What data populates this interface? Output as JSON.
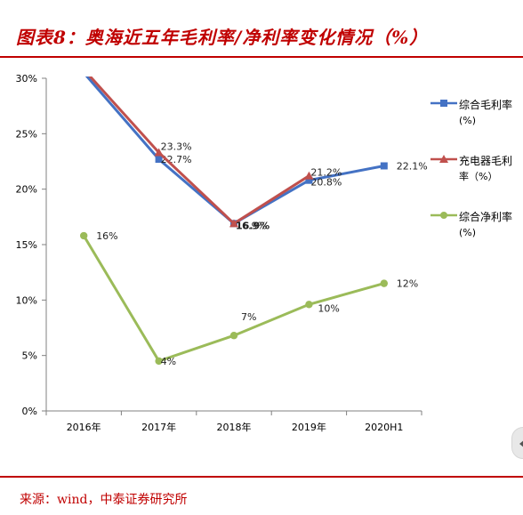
{
  "header": {
    "title": "图表8：奥海近五年毛利率/净利率变化情况（%）"
  },
  "footer": {
    "source": "来源：wind，中泰证券研究所"
  },
  "colors": {
    "accent": "#c00000",
    "series_gross": "#4472c4",
    "series_charger": "#c0504d",
    "series_net": "#9bbb59"
  },
  "chart_data": {
    "type": "line",
    "title": "",
    "xlabel": "",
    "ylabel": "",
    "categories": [
      "2016年",
      "2017年",
      "2018年",
      "2019年",
      "2020H1"
    ],
    "ylim": [
      0,
      30
    ],
    "yticks": [
      "0%",
      "5%",
      "10%",
      "15%",
      "20%",
      "25%",
      "30%"
    ],
    "grid": false,
    "legend_position": "right",
    "series": [
      {
        "name": "综合毛利率(%)",
        "legend_line1": "综合毛利率",
        "legend_line2": "(%)",
        "color": "#4472c4",
        "marker": "square",
        "values": [
          30.5,
          22.7,
          16.9,
          20.8,
          22.1
        ],
        "labels": [
          "",
          "22.7%",
          "16.9%",
          "20.8%",
          "22.1%"
        ]
      },
      {
        "name": "充电器毛利率（%）",
        "legend_line1": "充电器毛利",
        "legend_line2": "率（%）",
        "color": "#c0504d",
        "marker": "triangle",
        "values": [
          30.8,
          23.3,
          16.9,
          21.2,
          null
        ],
        "labels": [
          "",
          "23.3%",
          "16.9%",
          "21.2%",
          ""
        ]
      },
      {
        "name": "综合净利率(%)",
        "legend_line1": "综合净利率",
        "legend_line2": "(%)",
        "color": "#9bbb59",
        "marker": "circle",
        "values": [
          15.8,
          4.5,
          6.8,
          9.6,
          11.5
        ],
        "labels": [
          "16%",
          "4%",
          "7%",
          "10%",
          "12%"
        ]
      }
    ]
  }
}
